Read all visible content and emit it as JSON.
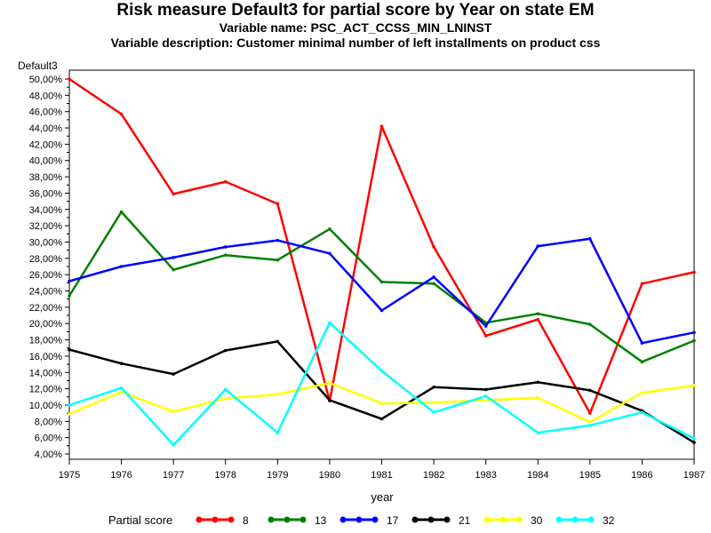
{
  "header": {
    "title": "Risk measure Default3 for partial score by Year on state EM",
    "subtitle1": "Variable name: PSC_ACT_CCSS_MIN_LNINST",
    "subtitle2": "Variable description: Customer minimal number of left installments on product css"
  },
  "chart_data": {
    "type": "line",
    "title": "Risk measure Default3 for partial score by Year on state EM",
    "xlabel": "year",
    "ylabel": "Default3",
    "x": [
      "1975",
      "1976",
      "1977",
      "1978",
      "1979",
      "1980",
      "1981",
      "1982",
      "1983",
      "1984",
      "1985",
      "1986",
      "1987"
    ],
    "ylim": [
      4,
      50
    ],
    "yticks": [
      "4,00%",
      "6,00%",
      "8,00%",
      "10,00%",
      "12,00%",
      "14,00%",
      "16,00%",
      "18,00%",
      "20,00%",
      "22,00%",
      "24,00%",
      "26,00%",
      "28,00%",
      "30,00%",
      "32,00%",
      "34,00%",
      "36,00%",
      "38,00%",
      "40,00%",
      "42,00%",
      "44,00%",
      "46,00%",
      "48,00%",
      "50,00%"
    ],
    "legend_title": "Partial score",
    "legend_position": "bottom",
    "grid": false,
    "series": [
      {
        "name": "8",
        "color": "#ff0000",
        "values": [
          50.0,
          45.7,
          35.9,
          37.4,
          34.7,
          10.5,
          44.2,
          29.4,
          18.5,
          20.5,
          9.0,
          24.9,
          26.3
        ]
      },
      {
        "name": "13",
        "color": "#008000",
        "values": [
          23.4,
          33.7,
          26.6,
          28.4,
          27.8,
          31.6,
          25.1,
          24.9,
          20.1,
          21.2,
          19.9,
          15.3,
          17.9
        ]
      },
      {
        "name": "17",
        "color": "#0000ff",
        "values": [
          25.2,
          27.0,
          28.1,
          29.4,
          30.2,
          28.6,
          21.6,
          25.7,
          19.7,
          29.5,
          30.4,
          17.6,
          18.9
        ]
      },
      {
        "name": "21",
        "color": "#000000",
        "values": [
          16.8,
          15.1,
          13.8,
          16.7,
          17.8,
          10.6,
          8.3,
          12.2,
          11.9,
          12.8,
          11.8,
          9.3,
          5.4
        ]
      },
      {
        "name": "30",
        "color": "#ffff00",
        "values": [
          8.9,
          11.6,
          9.2,
          10.8,
          11.3,
          12.7,
          10.2,
          10.3,
          10.6,
          10.9,
          7.9,
          11.5,
          12.4
        ]
      },
      {
        "name": "32",
        "color": "#00ffff",
        "values": [
          10.0,
          12.1,
          5.1,
          11.9,
          6.6,
          20.1,
          14.2,
          9.1,
          11.1,
          6.6,
          7.5,
          9.1,
          5.9
        ]
      }
    ]
  }
}
